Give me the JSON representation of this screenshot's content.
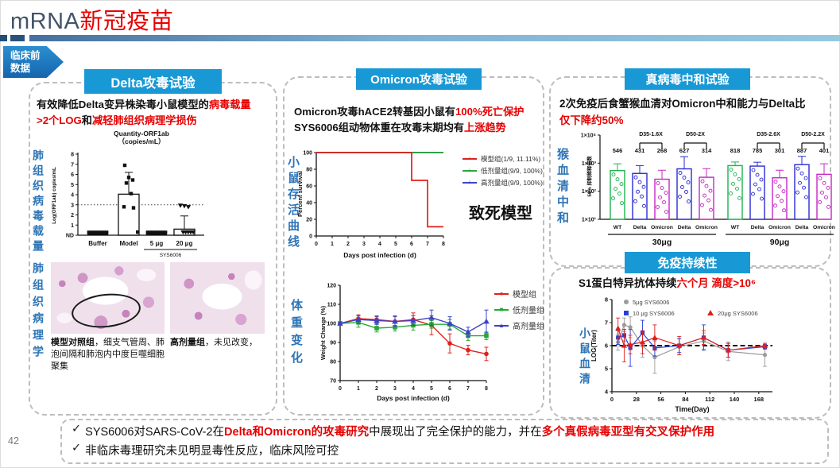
{
  "header": {
    "title_prefix": "mRNA",
    "title_suffix": "新冠疫苗",
    "badge_line1": "临床前",
    "badge_line2": "数据",
    "page_number": "42"
  },
  "colors": {
    "accent_blue": "#1899d6",
    "title_dark": "#44546a",
    "red": "#e60000",
    "vertical_label_blue": "#2e75b6",
    "wt_green": "#1db24e",
    "delta_blue": "#2b2bd5",
    "omicron_magenta": "#c428c4"
  },
  "sections": {
    "delta": {
      "button": "Delta攻毒试验",
      "heading1": [
        {
          "t": "有效降低Delta变异株染毒小鼠模型的",
          "c": "k"
        },
        {
          "t": "病毒载量",
          "c": "r"
        }
      ],
      "heading2": [
        {
          "t": ">2个LOG",
          "c": "r"
        },
        {
          "t": "和",
          "c": "k"
        },
        {
          "t": "减轻肺组织病理学损伤",
          "c": "r"
        }
      ],
      "vlabel_viral": "肺组织病毒载量",
      "vlabel_path": "肺组织病理学",
      "caption_left": [
        {
          "t": "模型对照组",
          "c": "b"
        },
        {
          "t": "，细支气管周、肺泡间隔和肺泡内中度巨噬细胞聚集",
          "c": "k"
        }
      ],
      "caption_right": [
        {
          "t": "高剂量组",
          "c": "b"
        },
        {
          "t": "，未见改变，",
          "c": "k"
        }
      ]
    },
    "omicron": {
      "button": "Omicron攻毒试验",
      "heading1": [
        {
          "t": "Omicron攻毒hACE2转基因小鼠有",
          "c": "k"
        },
        {
          "t": "100%死亡保护",
          "c": "r"
        }
      ],
      "heading2": [
        {
          "t": "SYS6006组动物体重在攻毒末期均有",
          "c": "k"
        },
        {
          "t": "上涨趋势",
          "c": "r"
        }
      ],
      "vlabel_survival": "小鼠存活曲线",
      "vlabel_weight": "体重变化"
    },
    "neutralization": {
      "button": "真病毒中和试验",
      "heading1": [
        {
          "t": "2次免疫后食蟹猴血清对Omicron中和能力与Delta比",
          "c": "k"
        }
      ],
      "heading2": [
        {
          "t": "仅下降约50%",
          "c": "r"
        }
      ],
      "vlabel": "猴血清中和"
    },
    "persistence": {
      "button": "免疫持续性",
      "heading": [
        {
          "t": "S1蛋白特异抗体持续",
          "c": "k"
        },
        {
          "t": "六个月 滴度>10⁶",
          "c": "r"
        }
      ],
      "vlabel": "小鼠血清"
    }
  },
  "summary": {
    "check": "✓",
    "line1": [
      {
        "t": "SYS6006对SARS-CoV-2在",
        "c": "k"
      },
      {
        "t": "Delta和Omicron的攻毒研究",
        "c": "rb"
      },
      {
        "t": "中展现出了完全保护的能力，并在",
        "c": "k"
      },
      {
        "t": "多个真假病毒亚型有交叉保护作用",
        "c": "rb"
      }
    ],
    "line2": [
      {
        "t": "非临床毒理研究未见明显毒性反应，临床风险可控",
        "c": "k"
      }
    ]
  },
  "chart_data": [
    {
      "id": "viral",
      "type": "bar",
      "title_lines": [
        "Quantity-ORF1ab",
        "（copies/mL）"
      ],
      "ylabel": "Log(ORF1ab) copies/mL",
      "ylim": [
        0,
        8
      ],
      "yticks": [
        "ND",
        "1",
        "2",
        "3",
        "4",
        "5",
        "6",
        "7",
        "8"
      ],
      "ref_line": 3,
      "categories": [
        "Buffer",
        "Model",
        "5 μg",
        "20 μg"
      ],
      "group_label": "SYS6006",
      "bars": [
        {
          "value": 0.08,
          "err_hi": 0.08,
          "marker": "s",
          "points": [
            0.12,
            0.12,
            0.12,
            0.12,
            0.12,
            0.12,
            0.12,
            0.12
          ]
        },
        {
          "value": 4.05,
          "err_hi": 6.2,
          "marker": "s",
          "points": [
            6.9,
            5.7,
            5.45,
            5.15,
            4.1,
            2.8,
            2.7,
            0.15
          ]
        },
        {
          "value": 0.08,
          "err_hi": 0.08,
          "marker": "s",
          "points": [
            0.12,
            0.12,
            0.12,
            0.12,
            0.12,
            0.12,
            0.12,
            0.12
          ]
        },
        {
          "value": 0.6,
          "err_hi": 1.9,
          "marker": "t",
          "points": [
            2.95,
            2.9,
            2.8,
            0.15,
            0.15,
            0.15,
            0.15,
            0.15
          ]
        }
      ]
    },
    {
      "id": "survival",
      "type": "step",
      "xlabel": "Days post infection (d)",
      "ylabel": "Percent survival",
      "xlim": [
        0,
        8
      ],
      "ylim": [
        0,
        100
      ],
      "xticks": [
        0,
        1,
        2,
        3,
        4,
        5,
        6,
        7,
        8
      ],
      "yticks": [
        0,
        20,
        40,
        60,
        80,
        100
      ],
      "annotation": "致死模型",
      "series": [
        {
          "name": "模型组(1/9, 11.11%)",
          "color": "#e0201c",
          "points": [
            [
              0,
              100
            ],
            [
              6,
              100
            ],
            [
              6,
              66.7
            ],
            [
              7,
              66.7
            ],
            [
              7,
              11.1
            ],
            [
              8,
              11.1
            ]
          ]
        },
        {
          "name": "低剂量组(9/9, 100%)",
          "color": "#27a737",
          "points": [
            [
              0,
              100
            ],
            [
              8,
              100
            ]
          ]
        },
        {
          "name": "高剂量组(9/9, 100%)",
          "color": "#3b43c8",
          "points": [
            [
              0,
              100
            ],
            [
              8,
              100
            ]
          ]
        }
      ]
    },
    {
      "id": "weight",
      "type": "line",
      "xlabel": "Days post infection (d)",
      "ylabel": "Weight Change (%)",
      "x": [
        0,
        1,
        2,
        3,
        4,
        5,
        6,
        7,
        8
      ],
      "ylim": [
        70,
        120
      ],
      "yticks": [
        70,
        80,
        90,
        100,
        110,
        120
      ],
      "series": [
        {
          "name": "模型组",
          "color": "#e0201c",
          "marker": "c",
          "values": [
            100,
            102.5,
            102,
            101,
            102,
            99,
            89.5,
            86,
            84
          ],
          "err": [
            0.8,
            2,
            2,
            3,
            3.5,
            5,
            5,
            2.5,
            3.5
          ]
        },
        {
          "name": "低剂量组",
          "color": "#27a737",
          "marker": "s",
          "values": [
            100,
            100.5,
            97.5,
            98,
            99,
            99.5,
            99.5,
            93.5,
            93.5
          ],
          "err": [
            0.8,
            2.5,
            2,
            2,
            2.5,
            2,
            2.5,
            2.5,
            2
          ]
        },
        {
          "name": "高剂量组",
          "color": "#3b43c8",
          "marker": "t",
          "values": [
            100,
            102,
            101.5,
            101,
            101.5,
            103,
            100,
            95.5,
            101
          ],
          "err": [
            0.8,
            2,
            2,
            2.5,
            2.5,
            4,
            3.5,
            2.5,
            6
          ]
        }
      ]
    },
    {
      "id": "neut",
      "type": "logbar",
      "ylabel": "50% 抑制稀释倍数",
      "ytick_labels": [
        "1×10⁴",
        "1×10³",
        "1×10²",
        "1×10¹"
      ],
      "categories": [
        "WT",
        "Delta",
        "Omicron",
        "Delta",
        "Omicron",
        "WT",
        "Delta",
        "Omicron",
        "Delta",
        "Omicron"
      ],
      "values": [
        546,
        431,
        268,
        627,
        314,
        818,
        785,
        301,
        887,
        401
      ],
      "err_hi": [
        950,
        820,
        560,
        1700,
        640,
        1100,
        1080,
        560,
        1750,
        950
      ],
      "colors": [
        "g",
        "b",
        "m",
        "b",
        "m",
        "g",
        "b",
        "m",
        "b",
        "m"
      ],
      "series_colors": {
        "g": "#1db24e",
        "b": "#2b2bd5",
        "m": "#c428c4"
      },
      "brackets": [
        {
          "label": "D35-1.6X",
          "from": 1,
          "to": 2
        },
        {
          "label": "D50-2X",
          "from": 3,
          "to": 4
        },
        {
          "label": "D35-2.6X",
          "from": 6,
          "to": 7
        },
        {
          "label": "D50-2.2X",
          "from": 8,
          "to": 9
        }
      ],
      "groups": [
        {
          "label": "30μg",
          "from": 0,
          "to": 4
        },
        {
          "label": "90μg",
          "from": 5,
          "to": 9
        }
      ]
    },
    {
      "id": "persist",
      "type": "line",
      "xlabel": "Time(Day)",
      "ylabel": "LOG(Titer)",
      "x": [
        7,
        14,
        21,
        35,
        49,
        77,
        105,
        133,
        175
      ],
      "xticks": [
        0,
        28,
        56,
        84,
        112,
        140,
        168
      ],
      "ylim": [
        4,
        8
      ],
      "yticks": [
        4,
        5,
        6,
        7,
        8
      ],
      "ref_line": 6,
      "series": [
        {
          "name": "5μg SYS6006",
          "color": "#9b9b9b",
          "marker": "c",
          "values": [
            6.15,
            6.9,
            6.8,
            6.0,
            5.5,
            5.95,
            6.2,
            5.75,
            5.6
          ],
          "err": [
            0.35,
            0.3,
            0.45,
            0.5,
            0.7,
            0.35,
            0.35,
            0.4,
            0.5
          ]
        },
        {
          "name": "10 μg SYS6006",
          "color": "#2b3fd8",
          "marker": "s",
          "values": [
            6.35,
            6.45,
            5.9,
            6.55,
            5.9,
            6.0,
            6.35,
            5.8,
            5.95
          ],
          "err": [
            0.3,
            0.25,
            0.8,
            0.55,
            0.35,
            0.3,
            0.55,
            0.3,
            0.1
          ]
        },
        {
          "name": "20μg SYS6006",
          "color": "#e0201c",
          "marker": "t",
          "values": [
            6.75,
            6.0,
            6.05,
            6.15,
            6.35,
            6.0,
            6.35,
            5.8,
            6.0
          ],
          "err": [
            0.45,
            0.7,
            0.4,
            0.5,
            0.55,
            0.4,
            0.3,
            0.3,
            0.1
          ]
        }
      ]
    }
  ]
}
